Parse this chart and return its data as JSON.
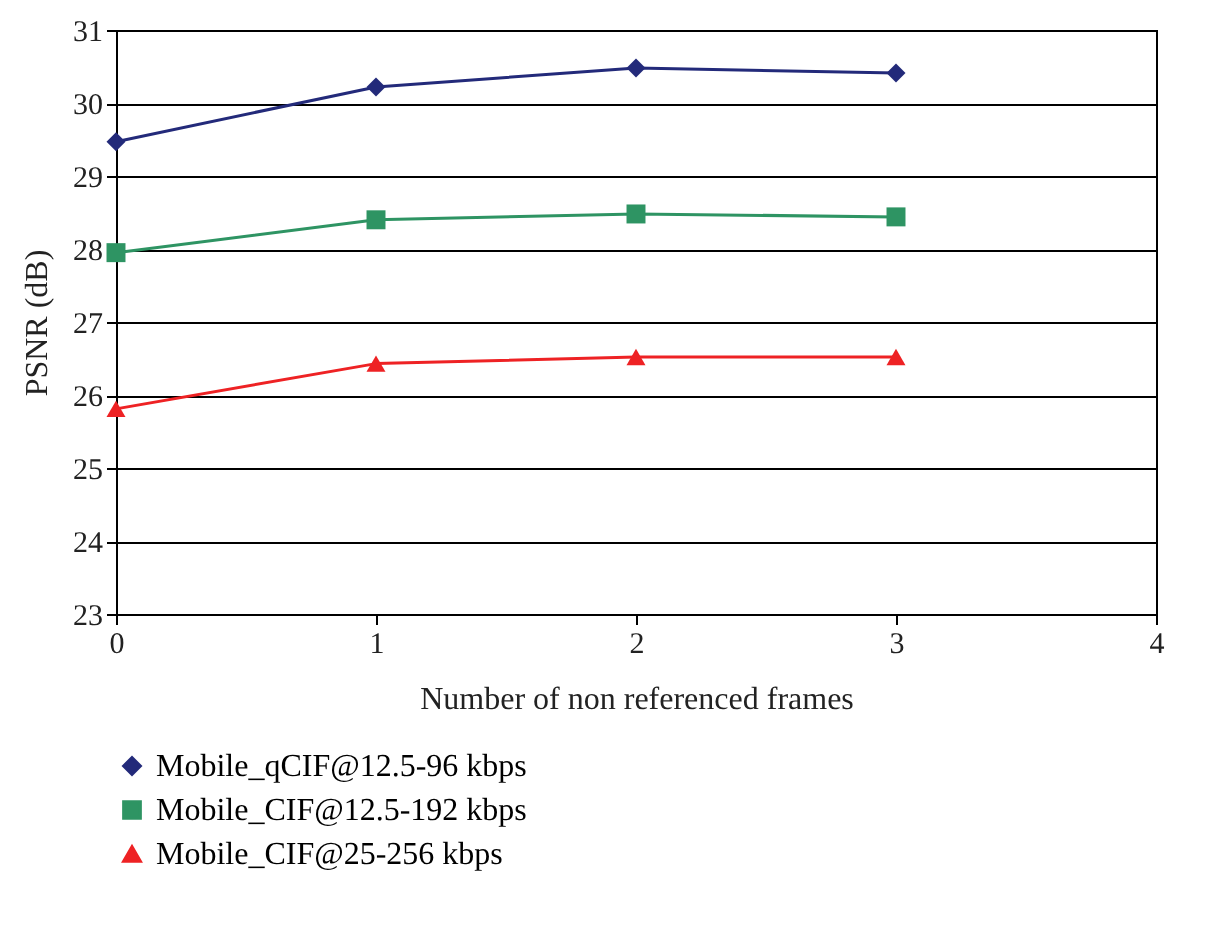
{
  "chart_data": {
    "type": "line",
    "xlabel": "Number of non referenced frames",
    "ylabel": "PSNR (dB)",
    "x": [
      0,
      1,
      2,
      3
    ],
    "xlim": [
      0,
      4
    ],
    "xticks": [
      0,
      1,
      2,
      3,
      4
    ],
    "ylim": [
      23,
      31
    ],
    "yticks": [
      23,
      24,
      25,
      26,
      27,
      28,
      29,
      30,
      31
    ],
    "grid": "y",
    "legend": "bottom",
    "line_style": "solid",
    "series": [
      {
        "name": "Mobile_qCIF@12.5-96 kbps",
        "color": "#232a7a",
        "marker": "diamond",
        "values": [
          29.47,
          30.22,
          30.48,
          30.41
        ]
      },
      {
        "name": "Mobile_CIF@12.5-192 kbps",
        "color": "#2e9463",
        "marker": "square",
        "values": [
          27.95,
          28.4,
          28.48,
          28.44
        ]
      },
      {
        "name": "Mobile_CIF@25-256 kbps",
        "color": "#ee2224",
        "marker": "triangle",
        "values": [
          25.81,
          26.43,
          26.52,
          26.52
        ]
      }
    ]
  }
}
